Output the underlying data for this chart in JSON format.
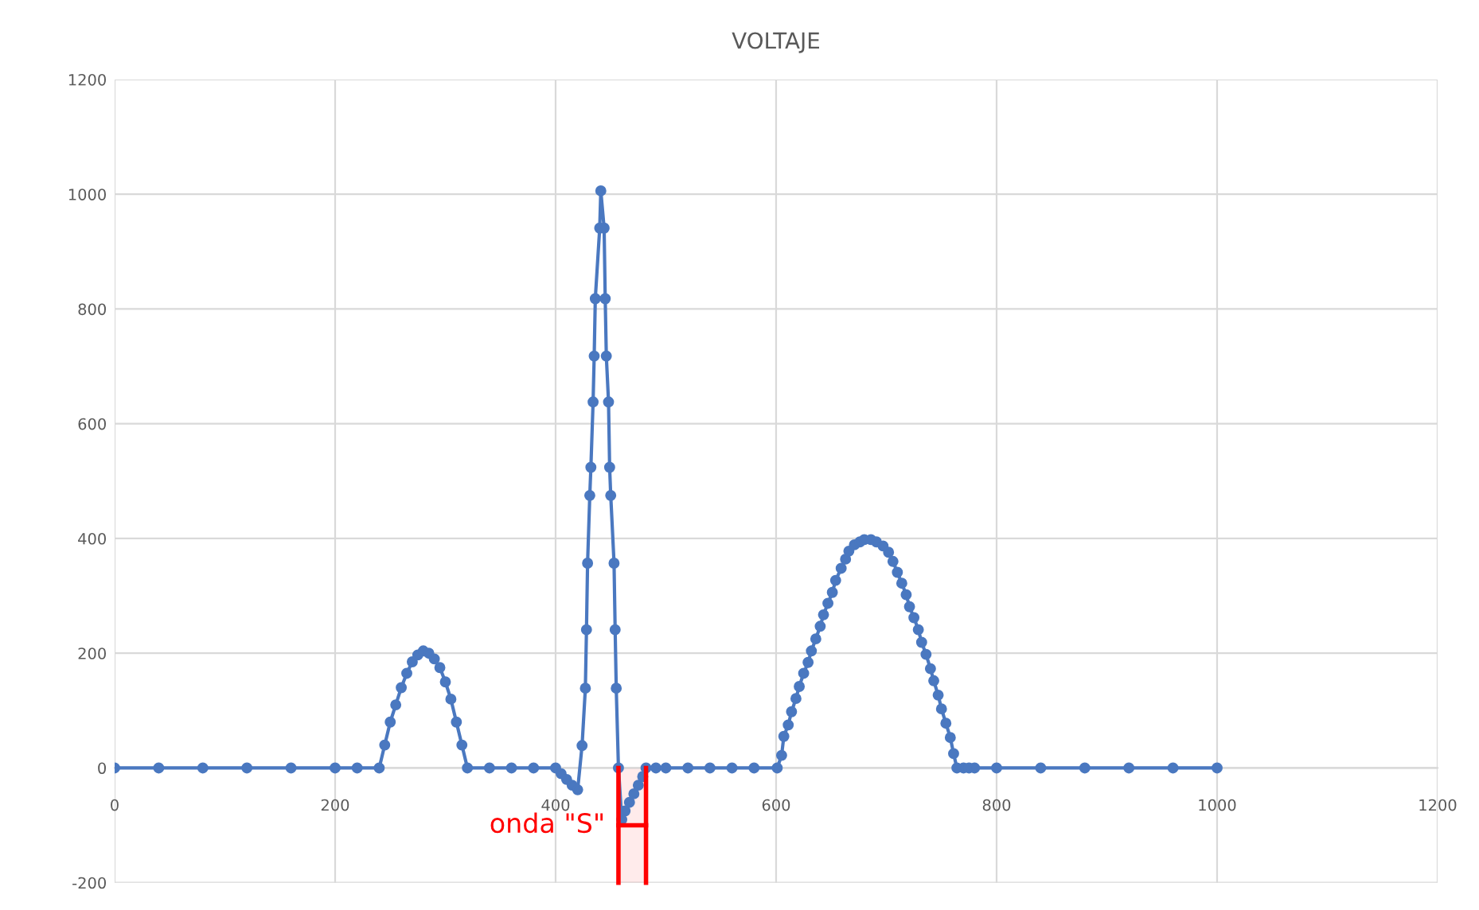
{
  "chart_data": {
    "type": "line",
    "title": "VOLTAJE",
    "marker": "circle",
    "grid": true,
    "line_style": "solid",
    "xlim": [
      0,
      1200
    ],
    "xticks": [
      0,
      200,
      400,
      600,
      800,
      1000,
      1200
    ],
    "ylim": [
      -200,
      1200
    ],
    "yticks": [
      -200,
      0,
      200,
      400,
      600,
      800,
      1000,
      1200
    ],
    "series": [
      {
        "color": "#4a78c0",
        "x": [
          0,
          40,
          80,
          120,
          160,
          200,
          220,
          240,
          245,
          250,
          255,
          260,
          265,
          270,
          275,
          280,
          285,
          290,
          295,
          300,
          305,
          310,
          315,
          320,
          340,
          360,
          380,
          400,
          405,
          410,
          415,
          420,
          424,
          427,
          428,
          429,
          431,
          432,
          434,
          435,
          436,
          440,
          441,
          444,
          445,
          446,
          448,
          449,
          450,
          453,
          454,
          455,
          457,
          460,
          463,
          467,
          471,
          475,
          479,
          482,
          491,
          500,
          520,
          540,
          560,
          580,
          601,
          605,
          607,
          611,
          614,
          618,
          621,
          625,
          629,
          632,
          636,
          640,
          643,
          647,
          651,
          654,
          659,
          663,
          666,
          671,
          676,
          680,
          686,
          691,
          697,
          702,
          706,
          710,
          714,
          718,
          721,
          725,
          729,
          732,
          736,
          740,
          743,
          747,
          750,
          754,
          758,
          761,
          764,
          770,
          775,
          780,
          800,
          840,
          880,
          920,
          960,
          1000
        ],
        "values": [
          0,
          0,
          0,
          0,
          0,
          0,
          0,
          0,
          40,
          80,
          110,
          140,
          165,
          185,
          197,
          204,
          200,
          190,
          175,
          150,
          120,
          80,
          40,
          0,
          0,
          0,
          0,
          0,
          -10,
          -20,
          -30,
          -38,
          39,
          139,
          241,
          357,
          475,
          524,
          638,
          718,
          818,
          941,
          1006,
          941,
          818,
          718,
          638,
          524,
          475,
          357,
          241,
          139,
          0,
          -90,
          -75,
          -60,
          -45,
          -30,
          -15,
          0,
          0,
          0,
          0,
          0,
          0,
          0,
          0,
          22,
          55,
          75,
          98,
          121,
          142,
          165,
          184,
          204,
          225,
          247,
          267,
          287,
          306,
          327,
          348,
          364,
          378,
          389,
          394,
          398,
          398,
          394,
          387,
          376,
          360,
          341,
          322,
          302,
          281,
          262,
          241,
          219,
          198,
          173,
          152,
          127,
          103,
          78,
          53,
          25,
          0,
          0,
          0,
          0,
          0,
          0,
          0,
          0,
          0,
          0
        ]
      }
    ],
    "bands": [
      {
        "axis": "x",
        "from": 457,
        "to": 482,
        "label": "onda \"S\"",
        "color": "#ff0000"
      }
    ]
  }
}
